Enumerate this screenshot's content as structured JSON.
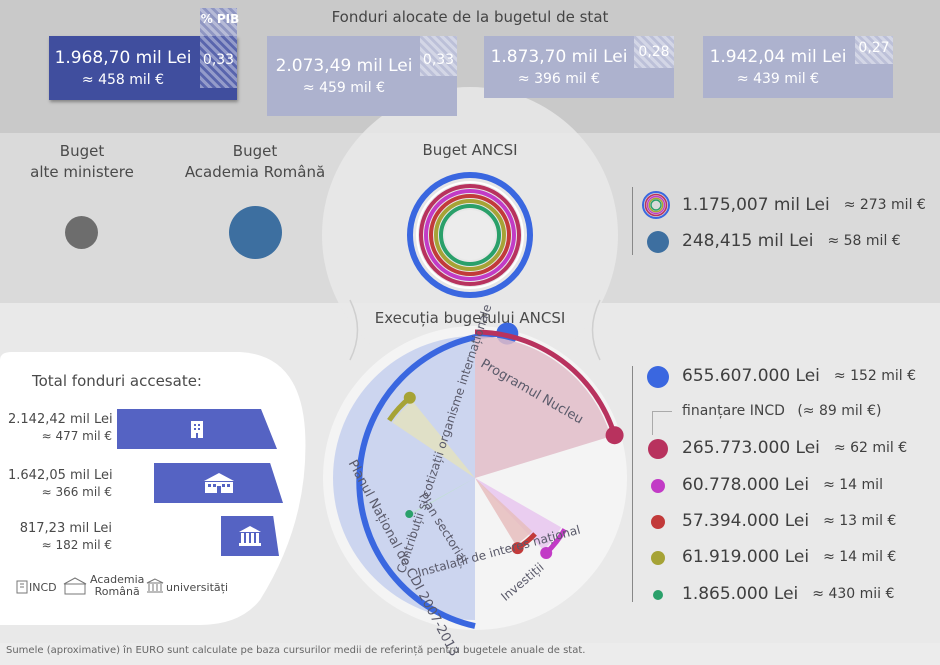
{
  "header": {
    "title": "Fonduri alocate de la bugetul de stat"
  },
  "pib_label": "% PIB",
  "years": [
    {
      "mil_lei": "1.968,70 mil Lei",
      "mil_eur": "≈ 458 mil €",
      "pib": "0,33",
      "active": true
    },
    {
      "mil_lei": "2.073,49 mil Lei",
      "mil_eur": "≈ 459 mil €",
      "pib": "0,33",
      "active": false
    },
    {
      "mil_lei": "1.873,70 mil Lei",
      "mil_eur": "≈ 396 mil €",
      "pib": "0,28",
      "active": false
    },
    {
      "mil_lei": "1.942,04 mil Lei",
      "mil_eur": "≈ 439 mil €",
      "pib": "0,27",
      "active": false
    }
  ],
  "budgets": {
    "other_ministries": "Buget\nalte ministere",
    "academy": "Buget\nAcademia Română",
    "ancsi": "Buget ANCSI"
  },
  "budget_legend": [
    {
      "value": "1.175,007 mil Lei",
      "eur": "≈ 273 mil €",
      "icon": "rings-icon"
    },
    {
      "value": "248,415 mil Lei",
      "eur": "≈ 58 mil €",
      "color": "#3d6fa0"
    }
  ],
  "execution_title": "Execuția bugetului ANCSI",
  "accessed": {
    "title": "Total fonduri accesate:",
    "rows": [
      {
        "lei": "2.142,42 mil Lei",
        "eur": "≈ 477 mil €",
        "icon": "incd-building-icon",
        "value_mil_lei": 2142.42
      },
      {
        "lei": "1.642,05 mil Lei",
        "eur": "≈ 366 mil €",
        "icon": "academy-building-icon",
        "value_mil_lei": 1642.05
      },
      {
        "lei": "817,23 mil Lei",
        "eur": "≈ 182 mil €",
        "icon": "university-building-icon",
        "value_mil_lei": 817.23
      }
    ],
    "legend": [
      {
        "label": "INCD",
        "icon": "incd-building-icon"
      },
      {
        "label": "Academia\nRomână",
        "icon": "academy-building-icon"
      },
      {
        "label": "universități",
        "icon": "university-building-icon"
      }
    ]
  },
  "chart_data": {
    "type": "pie",
    "title": "Execuția bugetului ANCSI",
    "series": [
      {
        "name": "Planul Național de CDI 2007-2013",
        "value_lei": 655607000,
        "label": "655.607.000 Lei",
        "eur": "≈ 152 mil €",
        "color": "#3a67e0"
      },
      {
        "name": "Programul Nucleu",
        "value_lei": 265773000,
        "label": "265.773.000 Lei",
        "eur": "≈ 62 mil €",
        "color": "#b8325e"
      },
      {
        "name": "Instalații de interes național",
        "value_lei": 60778000,
        "label": "60.778.000 Lei",
        "eur": "≈ 14 mil",
        "color": "#c23bc6"
      },
      {
        "name": "Investiții",
        "value_lei": 57394000,
        "label": "57.394.000 Lei",
        "eur": "≈ 13 mil €",
        "color": "#c23a3a"
      },
      {
        "name": "Contribuții și cotizații organisme internaționale",
        "value_lei": 61919000,
        "label": "61.919.000 Lei",
        "eur": "≈ 14 mil €",
        "color": "#a6a336"
      },
      {
        "name": "Plan sectorial",
        "value_lei": 1865000,
        "label": "1.865.000 Lei",
        "eur": "≈ 430 mii €",
        "color": "#2aa06a"
      }
    ],
    "incd_note": "finanțare INCD",
    "incd_note_eur": "(≈ 89 mil €)"
  },
  "footer": "Sumele (aproximative) în EURO sunt calculate pe baza cursurilor medii de referință pentru bugetele anuale de stat."
}
